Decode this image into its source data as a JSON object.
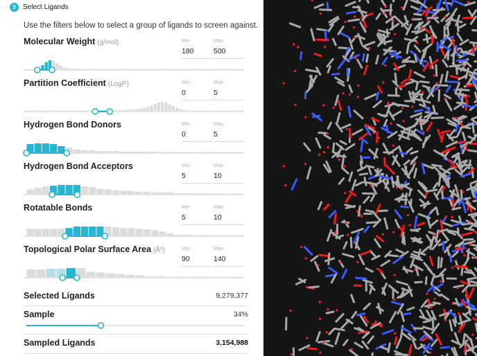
{
  "step": {
    "number": "3",
    "title": "Select Ligands"
  },
  "intro": "Use the filters below to select a group of ligands to screen against.",
  "min_label": "Min",
  "max_label": "Max",
  "colors": {
    "accent": "#27b5cf",
    "bar_inactive": "#dcdcdc",
    "bar_light": "#b3dfe8",
    "viewer_bg": "#151515"
  },
  "filters": [
    {
      "title": "Molecular Weight",
      "unit": "(g/mol)",
      "min": "180",
      "max": "500",
      "hist": [
        1,
        1,
        2,
        4,
        8,
        13,
        16,
        15,
        11,
        7,
        4,
        3,
        2,
        2,
        1,
        1,
        1,
        1,
        1,
        1,
        0,
        0,
        0,
        0,
        0,
        0,
        0,
        0,
        0,
        0,
        0,
        0,
        0,
        0,
        0,
        0,
        0,
        0,
        0,
        0,
        0,
        0,
        0,
        0,
        0,
        0,
        0,
        0,
        0,
        0,
        0,
        0,
        0,
        0,
        0,
        0,
        0,
        0,
        0,
        0
      ],
      "sel": [
        0.05,
        0.118
      ]
    },
    {
      "title": "Partition Coefficient",
      "unit": "(LogP)",
      "min": "0",
      "max": "5",
      "hist": [
        0,
        0,
        0,
        0,
        0,
        0,
        0,
        0,
        0,
        0,
        0,
        0,
        0,
        0,
        0,
        0,
        0,
        0,
        0,
        1,
        1,
        1,
        1,
        1,
        2,
        2,
        2,
        3,
        3,
        4,
        4,
        5,
        6,
        8,
        10,
        13,
        15,
        16,
        15,
        12,
        9,
        6,
        4,
        3,
        2,
        1,
        1,
        1,
        1,
        1,
        0,
        0,
        0,
        0,
        0,
        0,
        0,
        0,
        0,
        0
      ],
      "sel": [
        0.316,
        0.383
      ]
    },
    {
      "title": "Hydrogen Bond Donors",
      "unit": "",
      "min": "0",
      "max": "5",
      "hist": [
        13,
        14,
        14,
        13,
        10,
        8,
        5,
        4,
        4,
        3,
        3,
        3,
        2,
        2,
        2,
        2,
        2,
        1,
        1,
        1,
        1,
        1,
        1,
        0,
        0,
        0,
        0,
        0
      ],
      "sel": [
        0.0,
        0.185
      ]
    },
    {
      "title": "Hydrogen Bond Acceptors",
      "unit": "",
      "min": "5",
      "max": "10",
      "hist": [
        7,
        9,
        11,
        12,
        13,
        13,
        13,
        11,
        10,
        8,
        7,
        6,
        5,
        5,
        4,
        4,
        3,
        3,
        3,
        2,
        2,
        2,
        2,
        1,
        1,
        1,
        0,
        0
      ],
      "sel": [
        0.118,
        0.234
      ]
    },
    {
      "title": "Rotatable Bonds",
      "unit": "",
      "min": "5",
      "max": "10",
      "hist": [
        10,
        10,
        10,
        10,
        10,
        11,
        13,
        13,
        13,
        13,
        13,
        12,
        11,
        11,
        10,
        9,
        8,
        6,
        4,
        2,
        2,
        1,
        1,
        1,
        0,
        0,
        0,
        0
      ],
      "sel": [
        0.178,
        0.361
      ]
    },
    {
      "title": "Topological Polar Surface Area",
      "unit": "(Å²)",
      "min": "90",
      "max": "140",
      "hist": [
        11,
        11,
        12,
        12,
        13,
        13,
        8,
        7,
        6,
        5,
        4,
        3,
        2,
        2,
        1,
        1,
        1,
        1,
        0,
        0,
        0,
        0
      ],
      "hist_light": [
        2,
        3
      ],
      "sel": [
        0.166,
        0.232
      ]
    }
  ],
  "selected_ligands": {
    "label": "Selected Ligands",
    "value": "9,279,377"
  },
  "sample": {
    "label": "Sample",
    "value": "34%",
    "fraction": 0.34
  },
  "sampled_ligands": {
    "label": "Sampled Ligands",
    "value": "3,154,988"
  }
}
